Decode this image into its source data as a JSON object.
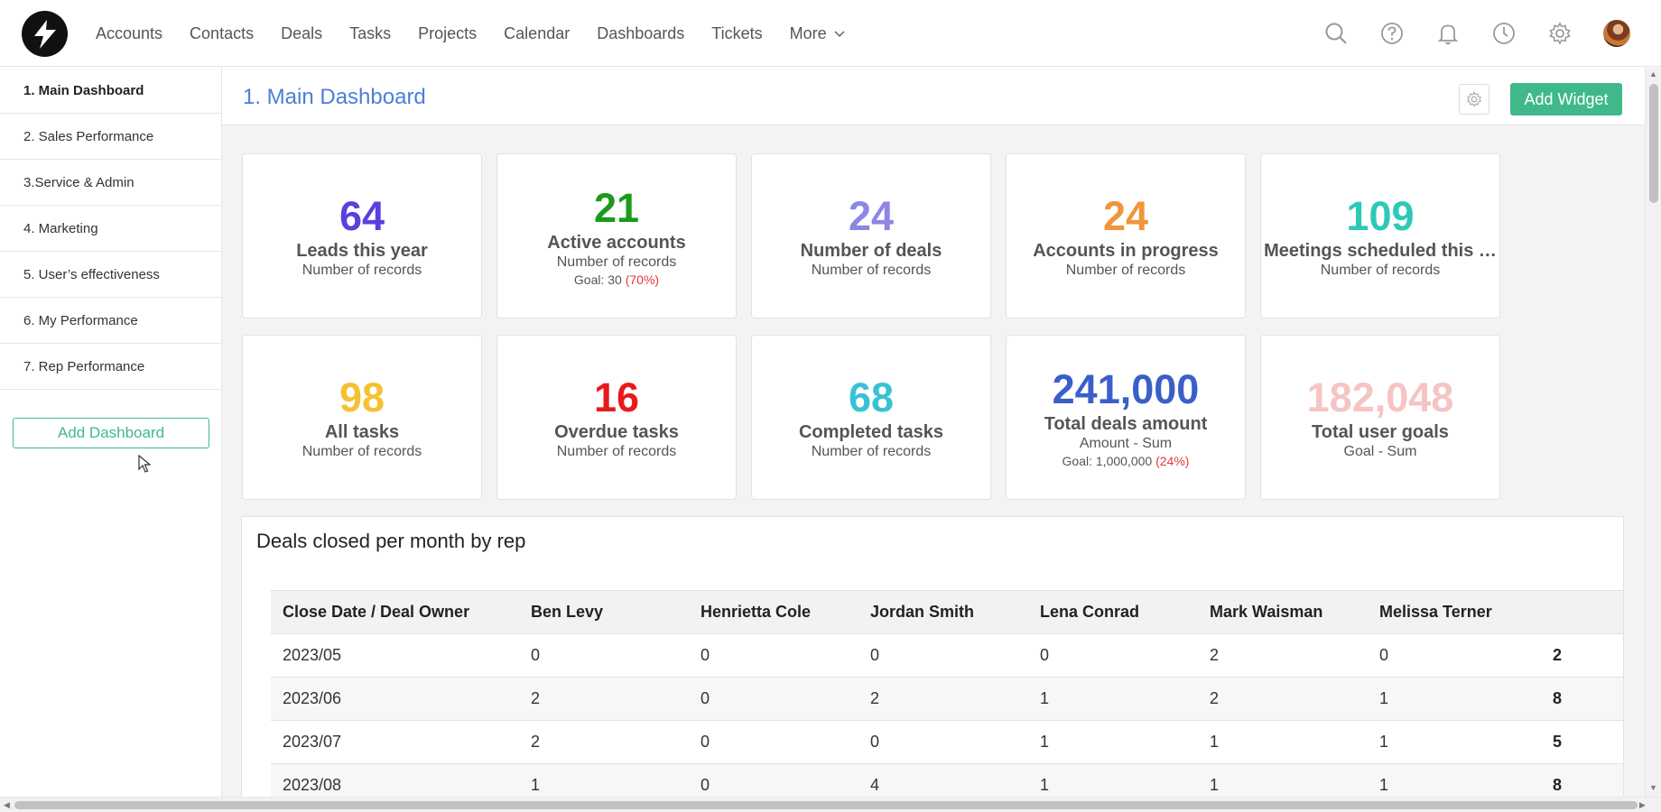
{
  "nav": {
    "items": [
      "Accounts",
      "Contacts",
      "Deals",
      "Tasks",
      "Projects",
      "Calendar",
      "Dashboards",
      "Tickets"
    ],
    "more_label": "More"
  },
  "top_icons": [
    "search-icon",
    "help-icon",
    "bell-icon",
    "clock-icon",
    "gear-icon"
  ],
  "sidebar": {
    "items": [
      {
        "label": "1. Main Dashboard",
        "active": true
      },
      {
        "label": "2. Sales Performance",
        "active": false
      },
      {
        "label": "3.Service & Admin",
        "active": false
      },
      {
        "label": "4. Marketing",
        "active": false
      },
      {
        "label": "5. User’s effectiveness",
        "active": false
      },
      {
        "label": "6. My Performance",
        "active": false
      },
      {
        "label": "7. Rep Performance",
        "active": false
      }
    ],
    "add_label": "Add Dashboard"
  },
  "main": {
    "title": "1. Main Dashboard",
    "add_widget_label": "Add Widget"
  },
  "cards": [
    {
      "value": "64",
      "label": "Leads this year",
      "sub": "Number of records",
      "color": "#5b3fe0"
    },
    {
      "value": "21",
      "label": "Active accounts",
      "sub": "Number of records",
      "goal": "Goal: 30",
      "goal_pct": "(70%)",
      "color": "#1a9b1a"
    },
    {
      "value": "24",
      "label": "Number of deals",
      "sub": "Number of records",
      "color": "#8c86e6"
    },
    {
      "value": "24",
      "label": "Accounts in progress",
      "sub": "Number of records",
      "color": "#f0953a"
    },
    {
      "value": "109",
      "label": "Meetings scheduled this …",
      "sub": "Number of records",
      "color": "#2ec9b6"
    },
    {
      "value": "98",
      "label": "All tasks",
      "sub": "Number of records",
      "color": "#f6c12e"
    },
    {
      "value": "16",
      "label": "Overdue tasks",
      "sub": "Number of records",
      "color": "#e8191c"
    },
    {
      "value": "68",
      "label": "Completed tasks",
      "sub": "Number of records",
      "color": "#38c2d4"
    },
    {
      "value": "241,000",
      "label": "Total deals amount",
      "sub": "Amount - Sum",
      "goal": "Goal: 1,000,000",
      "goal_pct": "(24%)",
      "color": "#3b5fc8"
    },
    {
      "value": "182,048",
      "label": "Total user goals",
      "sub": "Goal - Sum",
      "color": "#f6c4c4"
    }
  ],
  "deals_table": {
    "title": "Deals closed per month by rep",
    "columns": [
      "Close Date / Deal Owner",
      "Ben Levy",
      "Henrietta Cole",
      "Jordan Smith",
      "Lena Conrad",
      "Mark Waisman",
      "Melissa Terner",
      ""
    ],
    "rows": [
      [
        "2023/05",
        "0",
        "0",
        "0",
        "0",
        "2",
        "0",
        "2"
      ],
      [
        "2023/06",
        "2",
        "0",
        "2",
        "1",
        "2",
        "1",
        "8"
      ],
      [
        "2023/07",
        "2",
        "0",
        "0",
        "1",
        "1",
        "1",
        "5"
      ],
      [
        "2023/08",
        "1",
        "0",
        "4",
        "1",
        "1",
        "1",
        "8"
      ]
    ]
  }
}
